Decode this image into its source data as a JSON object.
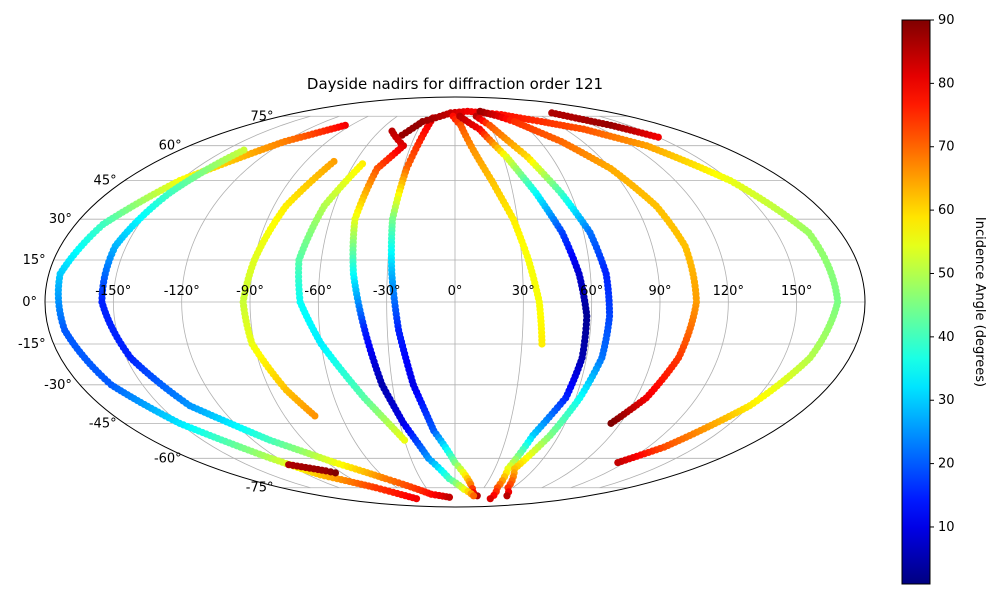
{
  "chart_data": {
    "type": "scatter",
    "projection": "mollweide",
    "title": "Dayside nadirs for diffraction order 121",
    "grid": true,
    "x_tick_labels": [
      "-150°",
      "-120°",
      "-90°",
      "-60°",
      "-30°",
      "0°",
      "30°",
      "60°",
      "90°",
      "120°",
      "150°"
    ],
    "x_ticks_deg": [
      -150,
      -120,
      -90,
      -60,
      -30,
      0,
      30,
      60,
      90,
      120,
      150
    ],
    "y_tick_labels": [
      "-75°",
      "-60°",
      "-45°",
      "-30°",
      "-15°",
      "0°",
      "15°",
      "30°",
      "45°",
      "60°",
      "75°"
    ],
    "y_ticks_deg": [
      -75,
      -60,
      -45,
      -30,
      -15,
      0,
      15,
      30,
      45,
      60,
      75
    ],
    "colorbar": {
      "label": "Incidence Angle (degrees)",
      "range": [
        1,
        90
      ],
      "colormap": "jet",
      "tick_values": [
        10,
        20,
        30,
        40,
        50,
        60,
        70,
        80,
        90
      ],
      "tick_labels": [
        "10",
        "20",
        "30",
        "40",
        "50",
        "60",
        "70",
        "80",
        "90"
      ]
    },
    "series": [
      {
        "points": [
          [
            -95,
            70,
            80
          ],
          [
            -120,
            62,
            68
          ],
          [
            -150,
            45,
            56
          ],
          [
            -167,
            28,
            40
          ],
          [
            -175,
            10,
            30
          ],
          [
            -173,
            -10,
            20
          ],
          [
            -165,
            -30,
            20
          ],
          [
            -150,
            -45,
            32
          ],
          [
            -125,
            -60,
            50
          ],
          [
            -110,
            -68,
            62
          ],
          [
            -82,
            -75,
            74
          ],
          [
            -60,
            -82,
            80
          ]
        ]
      },
      {
        "points": [
          [
            -138,
            58,
            52
          ],
          [
            -148,
            40,
            40
          ],
          [
            -155,
            20,
            28
          ],
          [
            -155,
            0,
            15
          ],
          [
            -148,
            -20,
            15
          ],
          [
            -135,
            -38,
            25
          ],
          [
            -110,
            -52,
            40
          ],
          [
            -85,
            -62,
            55
          ],
          [
            -60,
            -70,
            68
          ],
          [
            -30,
            -79,
            78
          ],
          [
            -8,
            -81,
            84
          ]
        ]
      },
      {
        "points": [
          [
            -120,
            -63,
            86
          ],
          [
            -100,
            -66,
            88
          ],
          [
            -95,
            -67,
            90
          ]
        ]
      },
      {
        "points": [
          [
            -73,
            53,
            65
          ],
          [
            -84,
            35,
            58
          ],
          [
            -90,
            15,
            54
          ],
          [
            -93,
            0,
            52
          ],
          [
            -91,
            -15,
            55
          ],
          [
            -82,
            -32,
            62
          ],
          [
            -74,
            -42,
            66
          ]
        ]
      },
      {
        "points": [
          [
            -55,
            52,
            58
          ],
          [
            -65,
            35,
            50
          ],
          [
            -70,
            15,
            42
          ],
          [
            -68,
            0,
            35
          ],
          [
            -60,
            -15,
            33
          ],
          [
            -45,
            -35,
            42
          ],
          [
            -30,
            -52,
            55
          ]
        ]
      },
      {
        "points": [
          [
            -22,
            74,
            82
          ],
          [
            -28,
            50,
            70
          ],
          [
            -30,
            30,
            45
          ],
          [
            -28,
            10,
            28
          ],
          [
            -25,
            -10,
            15
          ],
          [
            -20,
            -30,
            10
          ],
          [
            -12,
            -48,
            20
          ],
          [
            0,
            -62,
            45
          ],
          [
            15,
            -73,
            68
          ],
          [
            22,
            -78,
            80
          ],
          [
            30,
            -80,
            85
          ]
        ]
      },
      {
        "points": [
          [
            -40,
            65,
            88
          ],
          [
            -30,
            72,
            88
          ],
          [
            -5,
            77,
            84
          ],
          [
            15,
            78,
            80
          ],
          [
            50,
            76,
            78
          ],
          [
            80,
            72,
            75
          ],
          [
            105,
            68,
            72
          ],
          [
            130,
            60,
            65
          ],
          [
            150,
            45,
            55
          ],
          [
            165,
            25,
            48
          ],
          [
            168,
            0,
            45
          ],
          [
            162,
            -20,
            50
          ],
          [
            150,
            -38,
            58
          ],
          [
            130,
            -55,
            72
          ],
          [
            115,
            -62,
            84
          ]
        ]
      },
      {
        "points": [
          [
            -50,
            67,
            85
          ],
          [
            -35,
            60,
            82
          ],
          [
            -45,
            50,
            72
          ],
          [
            -48,
            30,
            55
          ],
          [
            -45,
            10,
            35
          ],
          [
            -40,
            -10,
            15
          ],
          [
            -35,
            -30,
            5
          ],
          [
            -28,
            -45,
            10
          ],
          [
            -18,
            -60,
            25
          ],
          [
            -5,
            -70,
            40
          ],
          [
            10,
            -76,
            55
          ],
          [
            25,
            -80,
            70
          ]
        ]
      },
      {
        "points": [
          [
            -2,
            75,
            78
          ],
          [
            5,
            70,
            72
          ],
          [
            12,
            58,
            66
          ],
          [
            20,
            45,
            62
          ],
          [
            28,
            30,
            58
          ],
          [
            33,
            15,
            56
          ],
          [
            37,
            0,
            56
          ],
          [
            39,
            -15,
            58
          ]
        ]
      },
      {
        "points": [
          [
            5,
            75,
            85
          ],
          [
            20,
            68,
            80
          ],
          [
            32,
            55,
            55
          ],
          [
            42,
            40,
            35
          ],
          [
            50,
            25,
            18
          ],
          [
            55,
            10,
            8
          ],
          [
            58,
            -5,
            3
          ],
          [
            58,
            -20,
            5
          ],
          [
            55,
            -35,
            15
          ],
          [
            45,
            -50,
            30
          ],
          [
            40,
            -65,
            55
          ],
          [
            44,
            -75,
            72
          ],
          [
            55,
            -82,
            82
          ]
        ]
      },
      {
        "points": [
          [
            22,
            75,
            85
          ],
          [
            30,
            70,
            72
          ],
          [
            45,
            55,
            60
          ],
          [
            55,
            40,
            40
          ],
          [
            63,
            25,
            22
          ],
          [
            67,
            10,
            15
          ],
          [
            68,
            -5,
            18
          ],
          [
            67,
            -20,
            22
          ],
          [
            62,
            -35,
            35
          ],
          [
            55,
            -50,
            45
          ],
          [
            45,
            -65,
            62
          ],
          [
            55,
            -75,
            75
          ],
          [
            70,
            -80,
            85
          ]
        ]
      },
      {
        "points": [
          [
            30,
            78,
            88
          ],
          [
            45,
            75,
            82
          ],
          [
            55,
            72,
            75
          ],
          [
            75,
            62,
            70
          ],
          [
            90,
            50,
            64
          ],
          [
            100,
            35,
            62
          ],
          [
            105,
            20,
            62
          ],
          [
            106,
            0,
            65
          ],
          [
            102,
            -20,
            74
          ],
          [
            95,
            -35,
            80
          ],
          [
            85,
            -45,
            90
          ]
        ]
      },
      {
        "points": [
          [
            110,
            77,
            86
          ],
          [
            120,
            74,
            86
          ],
          [
            135,
            70,
            88
          ],
          [
            150,
            64,
            80
          ]
        ]
      }
    ]
  }
}
